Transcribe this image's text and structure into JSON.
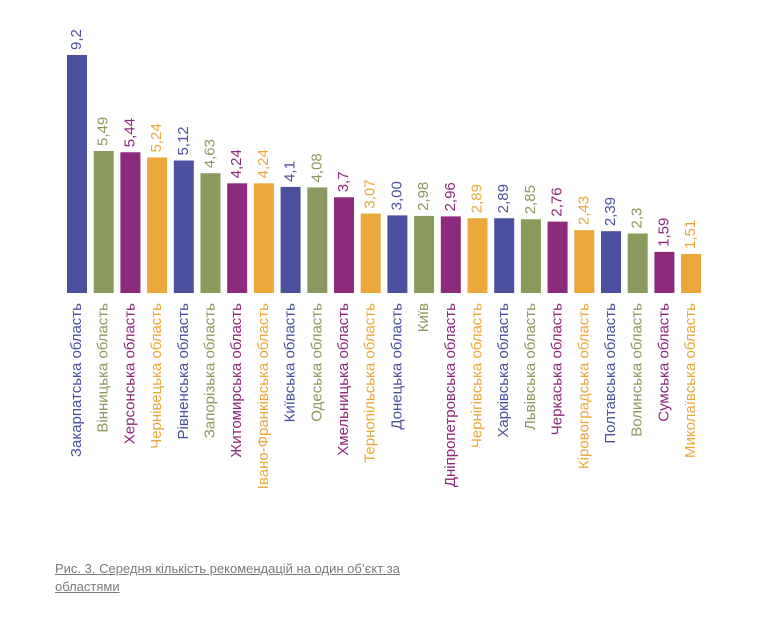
{
  "chart_data": {
    "type": "bar",
    "caption": "Рис. 3. Середня кількість рекомендацій на один об’єкт за областями",
    "categories": [
      "Закарпатська область",
      "Вінницька область",
      "Херсонська область",
      "Чернівецька область",
      "Рівненська область",
      "Запорізька область",
      "Житомирська область",
      "Івано-Франківська область",
      "Київська область",
      "Одеська область",
      "Хмельницька область",
      "Тернопільська область",
      "Донецька область",
      "Київ",
      "Дніпропетровська область",
      "Чернігівська область",
      "Харківська область",
      "Львівська область",
      "Черкаська область",
      "Кіровоградська область",
      "Полтавська область",
      "Волинська область",
      "Сумська область",
      "Миколаївська область"
    ],
    "values": [
      9.2,
      5.49,
      5.44,
      5.24,
      5.12,
      4.63,
      4.24,
      4.24,
      4.1,
      4.08,
      3.7,
      3.07,
      3.0,
      2.98,
      2.96,
      2.89,
      2.89,
      2.85,
      2.76,
      2.43,
      2.39,
      2.3,
      1.59,
      1.51
    ],
    "value_labels": [
      "9,2",
      "5,49",
      "5,44",
      "5,24",
      "5,12",
      "4,63",
      "4,24",
      "4,24",
      "4,1",
      "4,08",
      "3,7",
      "3,07",
      "3,00",
      "2,98",
      "2,96",
      "2,89",
      "2,89",
      "2,85",
      "2,76",
      "2,43",
      "2,39",
      "2,3",
      "1,59",
      "1,51"
    ],
    "colors": [
      "#4a4f9e",
      "#899a5c",
      "#8c2a7b",
      "#eaa83b",
      "#4a4f9e",
      "#899a5c",
      "#8c2a7b",
      "#eaa83b",
      "#4a4f9e",
      "#899a5c",
      "#8c2a7b",
      "#eaa83b",
      "#4a4f9e",
      "#899a5c",
      "#8c2a7b",
      "#eaa83b",
      "#4a4f9e",
      "#899a5c",
      "#8c2a7b",
      "#eaa83b",
      "#4a4f9e",
      "#899a5c",
      "#8c2a7b",
      "#eaa83b"
    ]
  }
}
